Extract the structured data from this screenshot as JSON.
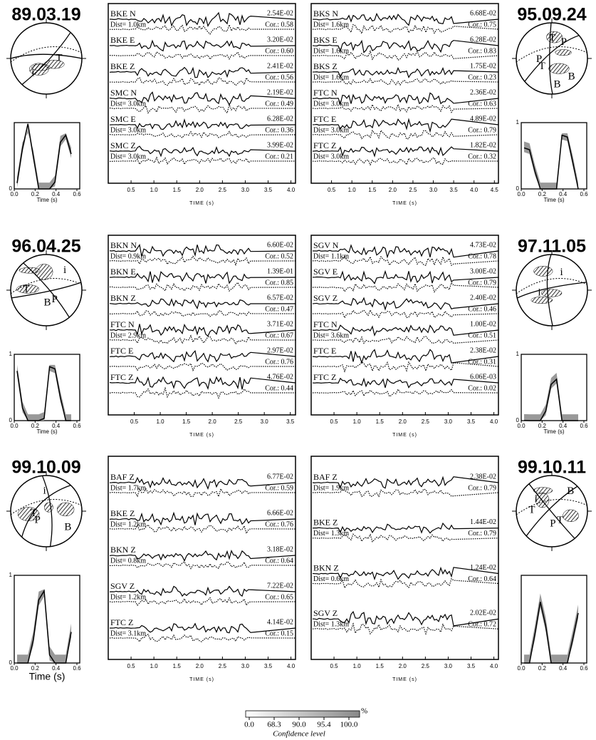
{
  "events": [
    {
      "date": "89.03.19",
      "beachball_labels": [
        "T",
        "i"
      ],
      "stf": {
        "yticks": [
          "0"
        ],
        "xticks": [
          "0.0",
          "0.2",
          "0.4",
          "0.6"
        ],
        "xlabel": "Time (s)"
      },
      "waveforms": {
        "xticks": [
          "0.5",
          "1.0",
          "1.5",
          "2.0",
          "2.5",
          "3.0",
          "3.5",
          "4.0"
        ],
        "xlabel": "TIME (s)",
        "traces": [
          {
            "name": "BKE N",
            "dist": "Dist= 1.0km",
            "amp": "2.54E-02",
            "cor": "Cor.: 0.58"
          },
          {
            "name": "BKE E",
            "amp": "3.20E-02",
            "cor": "Cor.: 0.60"
          },
          {
            "name": "BKE Z",
            "amp": "2.41E-02",
            "cor": "Cor.: 0.56"
          },
          {
            "name": "SMC N",
            "dist": "Dist= 3.0km",
            "amp": "2.19E-02",
            "cor": "Cor.: 0.49"
          },
          {
            "name": "SMC E",
            "dist": "Dist= 3.0km",
            "amp": "6.28E-02",
            "cor": "Cor.: 0.36"
          },
          {
            "name": "SMC Z",
            "dist": "Dist= 3.0km",
            "amp": "3.99E-02",
            "cor": "Cor.: 0.21"
          }
        ]
      }
    },
    {
      "date": "95.09.24",
      "beachball_labels": [
        "T",
        "T",
        "B",
        "P",
        "P",
        "B"
      ],
      "stf": {
        "yticks": [
          "1",
          "0"
        ],
        "xticks": [
          "0.0",
          "0.2",
          "0.4",
          "0.6"
        ],
        "xlabel": "Time (s)"
      },
      "waveforms": {
        "xticks": [
          "0.5",
          "1.0",
          "1.5",
          "2.0",
          "2.5",
          "3.0",
          "3.5",
          "4.0",
          "4.5"
        ],
        "xlabel": "TIME (s)",
        "traces": [
          {
            "name": "BKS N",
            "dist": "Dist= 1.6km",
            "amp": "6.68E-02",
            "cor": "Cor.: 0.75"
          },
          {
            "name": "BKS E",
            "dist": "Dist= 1.6km",
            "amp": "6.28E-02",
            "cor": "Cor.: 0.83"
          },
          {
            "name": "BKS Z",
            "dist": "Dist= 1.6km",
            "amp": "1.75E-02",
            "cor": "Cor.: 0.23"
          },
          {
            "name": "FTC N",
            "dist": "Dist= 3.0km",
            "amp": "2.36E-02",
            "cor": "Cor.: 0.63"
          },
          {
            "name": "FTC E",
            "dist": "Dist= 3.0km",
            "amp": "4.89E-02",
            "cor": "Cor.: 0.79"
          },
          {
            "name": "FTC Z",
            "dist": "Dist= 3.0km",
            "amp": "1.82E-02",
            "cor": "Cor.: 0.32"
          }
        ]
      }
    },
    {
      "date": "96.04.25",
      "beachball_labels": [
        "P",
        "T",
        "i",
        "B"
      ],
      "stf": {
        "yticks": [
          "1",
          "0"
        ],
        "xticks": [
          "0.0",
          "0.2",
          "0.4",
          "0.6"
        ],
        "xlabel": "Time (s)"
      },
      "waveforms": {
        "xticks": [
          "0.5",
          "1.0",
          "1.5",
          "2.0",
          "2.5",
          "3.0",
          "3.5"
        ],
        "xlabel": "TIME (s)",
        "traces": [
          {
            "name": "BKN N",
            "dist": "Dist= 0.9km",
            "amp": "6.60E-02",
            "cor": "Cor.: 0.52"
          },
          {
            "name": "BKN E",
            "amp": "1.39E-01",
            "cor": "Cor.: 0.85"
          },
          {
            "name": "BKN Z",
            "amp": "6.57E-02",
            "cor": "Cor.: 0.47"
          },
          {
            "name": "FTC N",
            "dist": "Dist= 2.9km",
            "amp": "3.71E-02",
            "cor": "Cor.: 0.67"
          },
          {
            "name": "FTC E",
            "amp": "2.97E-02",
            "cor": "Cor.: 0.76"
          },
          {
            "name": "FTC Z",
            "amp": "4.76E-02",
            "cor": "Cor.: 0.44"
          }
        ]
      }
    },
    {
      "date": "97.11.05",
      "beachball_labels": [
        "i",
        "i"
      ],
      "stf": {
        "yticks": [
          "1",
          "0"
        ],
        "xticks": [
          "0.0",
          "0.2",
          "0.4",
          "0.6"
        ],
        "xlabel": "Time (s)"
      },
      "waveforms": {
        "xticks": [
          "0.5",
          "1.0",
          "1.5",
          "2.0",
          "2.5",
          "3.0",
          "3.5",
          "4.0"
        ],
        "xlabel": "TIME (s)",
        "traces": [
          {
            "name": "SGV N",
            "dist": "Dist= 1.1km",
            "amp": "4.73E-02",
            "cor": "Cor.: 0.78"
          },
          {
            "name": "SGV E",
            "amp": "3.00E-02",
            "cor": "Cor.: 0.79"
          },
          {
            "name": "SGV Z",
            "amp": "2.40E-02",
            "cor": "Cor.: 0.46"
          },
          {
            "name": "FTC N",
            "dist": "Dist= 3.6km",
            "amp": "1.00E-02",
            "cor": "Cor.: 0.51"
          },
          {
            "name": "FTC E",
            "amp": "2.38E-02",
            "cor": "Cor.: 0.31"
          },
          {
            "name": "FTC Z",
            "amp": "6.06E-03",
            "cor": "Cor.: 0.02"
          }
        ]
      }
    },
    {
      "date": "99.10.09",
      "beachball_labels": [
        "P",
        "i",
        "B",
        "T"
      ],
      "stf": {
        "yticks": [
          "1",
          "0"
        ],
        "xticks": [
          "0.0",
          "0.2",
          "0.4",
          "0.6"
        ],
        "xlabel": "Time (s)"
      },
      "waveforms": {
        "xticks": [
          "0.5",
          "1.0",
          "1.5",
          "2.0",
          "2.5",
          "3.0",
          "3.5",
          "4.0"
        ],
        "xlabel": "TIME (s)",
        "traces": [
          {
            "name": "BAF Z",
            "dist": "Dist= 1.7km",
            "amp": "6.77E-02",
            "cor": "Cor.: 0.59"
          },
          {
            "name": "BKE Z",
            "dist": "Dist= 1.2km",
            "amp": "6.66E-02",
            "cor": "Cor.: 0.76"
          },
          {
            "name": "BKN Z",
            "dist": "Dist= 0.8km",
            "amp": "3.18E-02",
            "cor": "Cor.: 0.64"
          },
          {
            "name": "SGV Z",
            "dist": "Dist= 1.2km",
            "amp": "7.22E-02",
            "cor": "Cor.: 0.65"
          },
          {
            "name": "FTC Z",
            "dist": "Dist= 3.1km",
            "amp": "4.14E-02",
            "cor": "Cor.: 0.15"
          }
        ]
      }
    },
    {
      "date": "99.10.11",
      "beachball_labels": [
        "T",
        "T",
        "B",
        "P",
        "i"
      ],
      "stf": {
        "yticks": [],
        "xticks": [
          "0.0",
          "0.2",
          "0.4",
          "0.6"
        ],
        "xlabel": ""
      },
      "waveforms": {
        "xticks": [
          "0.5",
          "1.0",
          "1.5",
          "2.0",
          "2.5",
          "3.0",
          "3.5",
          "4.0"
        ],
        "xlabel": "TIME (s)",
        "traces": [
          {
            "name": "BAF Z",
            "dist": "Dist= 1.9km",
            "amp": "2.38E-02",
            "cor": "Cor.: 0.79"
          },
          {
            "name": "BKE Z",
            "dist": "Dist= 1.3km",
            "amp": "1.44E-02",
            "cor": "Cor.: 0.79"
          },
          {
            "name": "BKN Z",
            "dist": "Dist= 0.6km",
            "amp": "1.24E-02",
            "cor": "Cor.: 0.64"
          },
          {
            "name": "SGV Z",
            "dist": "Dist= 1.3km",
            "amp": "2.02E-02",
            "cor": "Cor.: 0.72"
          }
        ]
      }
    }
  ],
  "legend": {
    "ticks": [
      "0.0",
      "68.3",
      "90.0",
      "95.4",
      "100.0"
    ],
    "unit": "%",
    "label": "Confidence level"
  }
}
